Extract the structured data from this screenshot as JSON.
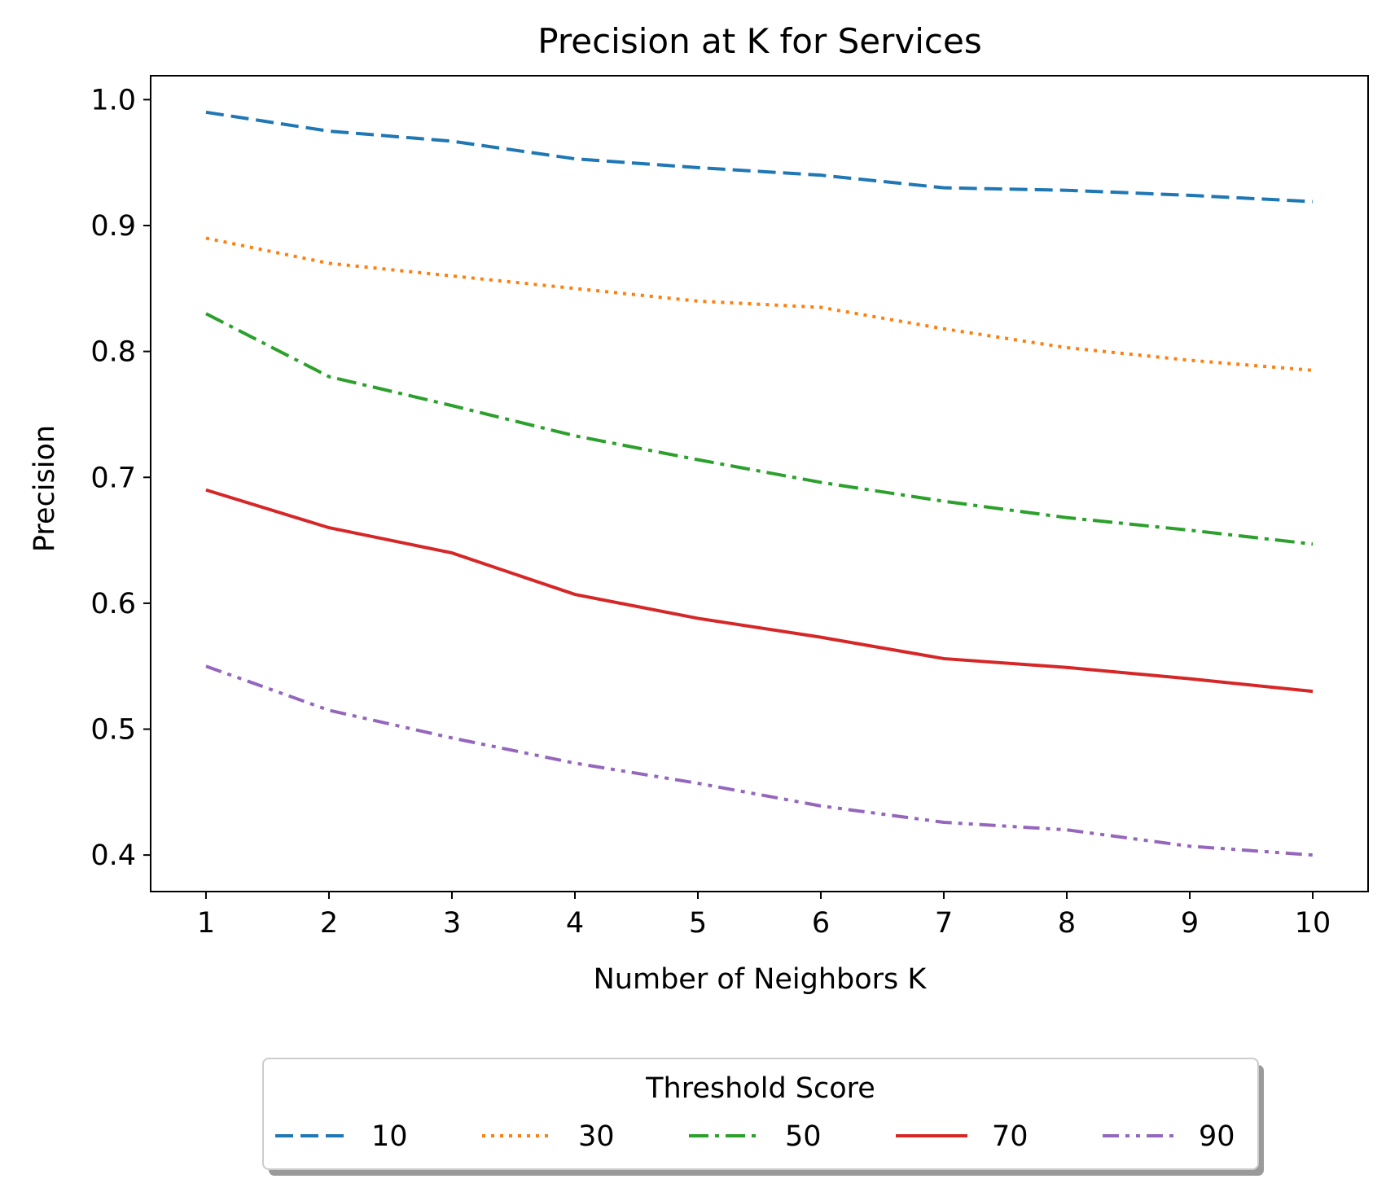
{
  "chart_data": {
    "type": "line",
    "title": "Precision at K for Services",
    "xlabel": "Number of Neighbors K",
    "ylabel": "Precision",
    "x": [
      1,
      2,
      3,
      4,
      5,
      6,
      7,
      8,
      9,
      10
    ],
    "xlim": [
      0.55,
      10.45
    ],
    "ylim": [
      0.371,
      1.019
    ],
    "xticks": [
      1,
      2,
      3,
      4,
      5,
      6,
      7,
      8,
      9,
      10
    ],
    "yticks": [
      0.4,
      0.5,
      0.6,
      0.7,
      0.8,
      0.9,
      1.0
    ],
    "xtick_labels": [
      "1",
      "2",
      "3",
      "4",
      "5",
      "6",
      "7",
      "8",
      "9",
      "10"
    ],
    "ytick_labels": [
      "0.4",
      "0.5",
      "0.6",
      "0.7",
      "0.8",
      "0.9",
      "1.0"
    ],
    "grid": false,
    "legend": {
      "title": "Threshold Score",
      "placement": "bottom-center, below plot",
      "columns": 5
    },
    "series": [
      {
        "name": "10",
        "color": "#1f77b4",
        "linestyle": "dashed",
        "values": [
          0.99,
          0.975,
          0.967,
          0.953,
          0.946,
          0.94,
          0.93,
          0.928,
          0.924,
          0.919
        ]
      },
      {
        "name": "30",
        "color": "#ff7f0e",
        "linestyle": "dotted",
        "values": [
          0.89,
          0.87,
          0.86,
          0.85,
          0.84,
          0.835,
          0.818,
          0.803,
          0.793,
          0.785
        ]
      },
      {
        "name": "50",
        "color": "#2ca02c",
        "linestyle": "dashdot",
        "values": [
          0.83,
          0.78,
          0.757,
          0.733,
          0.714,
          0.696,
          0.681,
          0.668,
          0.658,
          0.647
        ]
      },
      {
        "name": "70",
        "color": "#d62728",
        "linestyle": "solid",
        "values": [
          0.69,
          0.66,
          0.64,
          0.607,
          0.588,
          0.573,
          0.556,
          0.549,
          0.54,
          0.53
        ]
      },
      {
        "name": "90",
        "color": "#9467bd",
        "linestyle": "dashdotdot",
        "values": [
          0.55,
          0.515,
          0.493,
          0.473,
          0.457,
          0.439,
          0.426,
          0.42,
          0.407,
          0.4
        ]
      }
    ]
  }
}
